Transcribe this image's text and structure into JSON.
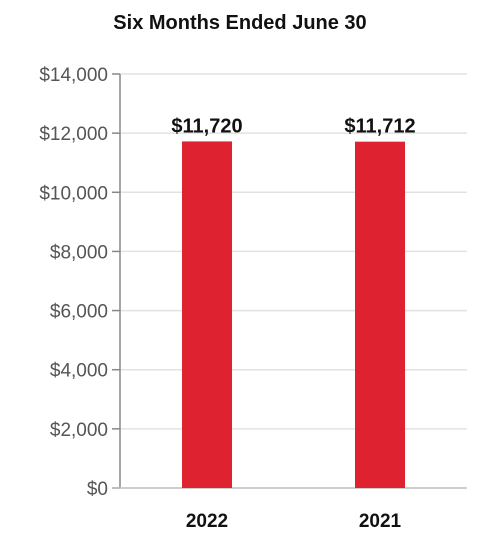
{
  "chart_data": {
    "type": "bar",
    "title": "Six Months Ended June 30",
    "xlabel": "",
    "ylabel": "",
    "categories": [
      "2022",
      "2021"
    ],
    "values": [
      11720,
      11712
    ],
    "data_labels": [
      "$11,720",
      "$11,712"
    ],
    "ylim": [
      0,
      14000
    ],
    "yticks": [
      0,
      2000,
      4000,
      6000,
      8000,
      10000,
      12000,
      14000
    ],
    "ytick_labels": [
      "$0",
      "$2,000",
      "$4,000",
      "$6,000",
      "$8,000",
      "$10,000",
      "$12,000",
      "$14,000"
    ],
    "grid": true,
    "bar_color": "#df2230"
  }
}
